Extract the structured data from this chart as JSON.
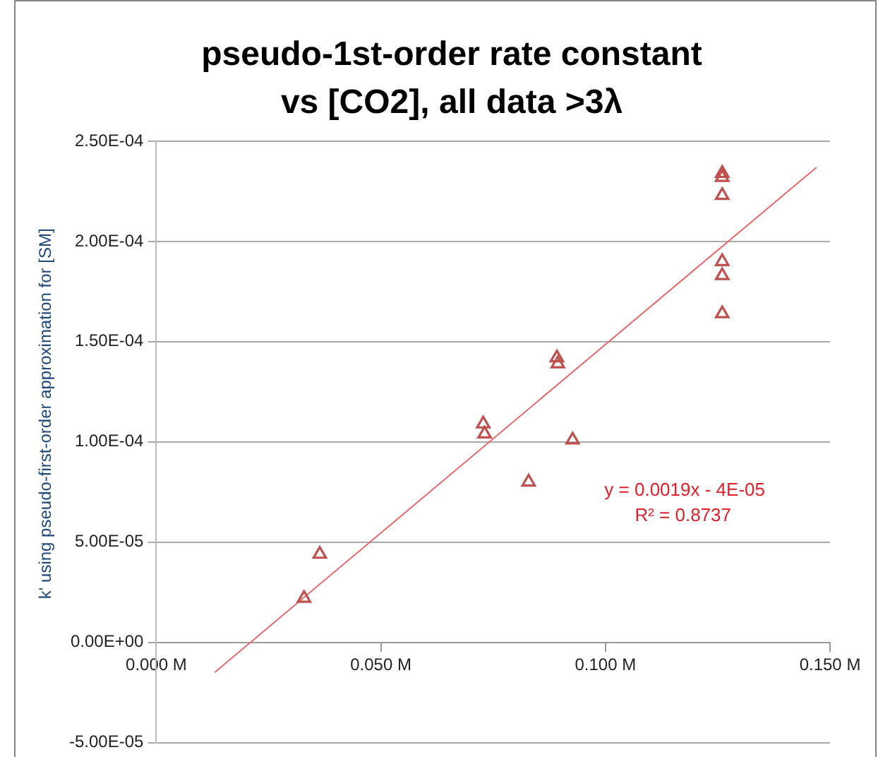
{
  "chart_data": {
    "type": "scatter",
    "title": "pseudo-1st-order rate constant\nvs [CO2], all data >3λ",
    "ylabel": "k' using pseudo-first-order approximation for [SM]",
    "xlim": [
      0,
      0.15
    ],
    "xticks": [
      {
        "value": 0,
        "label": "0.000 M"
      },
      {
        "value": 0.05,
        "label": "0.050 M"
      },
      {
        "value": 0.1,
        "label": "0.100 M"
      },
      {
        "value": 0.15,
        "label": "0.150 M"
      }
    ],
    "ylim": [
      -5e-05,
      0.00025
    ],
    "yticks": [
      {
        "value": -5e-05,
        "label": "-5.00E-05"
      },
      {
        "value": 0,
        "label": "0.00E+00"
      },
      {
        "value": 5e-05,
        "label": "5.00E-05"
      },
      {
        "value": 0.0001,
        "label": "1.00E-04"
      },
      {
        "value": 0.00015,
        "label": "1.50E-04"
      },
      {
        "value": 0.0002,
        "label": "2.00E-04"
      },
      {
        "value": 0.00025,
        "label": "2.50E-04"
      }
    ],
    "grid": "y",
    "legend": false,
    "marker": "triangle",
    "annotations": [
      "y = 0.0019x - 4E-05",
      "R² = 0.8737"
    ],
    "series": [
      {
        "color": "#c0504d",
        "x": [
          0.0329,
          0.0364,
          0.0728,
          0.0731,
          0.0829,
          0.0927,
          0.0892,
          0.0894,
          0.126,
          0.126,
          0.126,
          0.126,
          0.126,
          0.126
        ],
        "values": [
          2.2e-05,
          4.4e-05,
          0.000109,
          0.000104,
          8e-05,
          0.000101,
          0.000142,
          0.000139,
          0.000234,
          0.000232,
          0.000223,
          0.00019,
          0.000183,
          0.000164
        ]
      },
      {
        "type": "line",
        "color": "#e8696b",
        "x": [
          0.013,
          0.147
        ],
        "values": [
          -1.5e-05,
          0.000237
        ],
        "marker": "none"
      }
    ]
  }
}
